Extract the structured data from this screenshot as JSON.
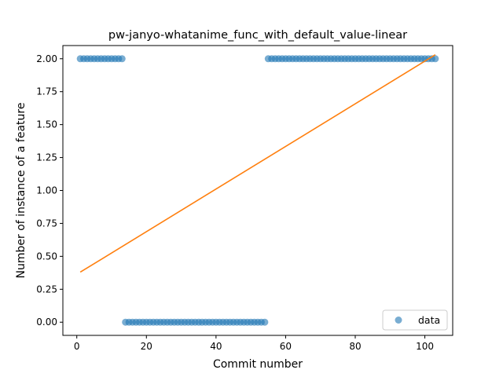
{
  "chart_data": {
    "type": "scatter",
    "title": "pw-janyo-whatanime_func_with_default_value-linear",
    "xlabel": "Commit number",
    "ylabel": "Number of instance of a feature",
    "xlim": [
      -4,
      108
    ],
    "ylim": [
      -0.1,
      2.1
    ],
    "xticks": [
      0,
      20,
      40,
      60,
      80,
      100
    ],
    "yticks": [
      0.0,
      0.25,
      0.5,
      0.75,
      1.0,
      1.25,
      1.5,
      1.75,
      2.0
    ],
    "ytick_labels": [
      "0.00",
      "0.25",
      "0.50",
      "0.75",
      "1.00",
      "1.25",
      "1.50",
      "1.75",
      "2.00"
    ],
    "grid": false,
    "legend": {
      "position": "lower-right",
      "entries": [
        "data"
      ]
    },
    "series": [
      {
        "name": "data",
        "kind": "scatter",
        "color": "#1f77b4",
        "x": [
          1,
          2,
          3,
          4,
          5,
          6,
          7,
          8,
          9,
          10,
          11,
          12,
          13,
          14,
          15,
          16,
          17,
          18,
          19,
          20,
          21,
          22,
          23,
          24,
          25,
          26,
          27,
          28,
          29,
          30,
          31,
          32,
          33,
          34,
          35,
          36,
          37,
          38,
          39,
          40,
          41,
          42,
          43,
          44,
          45,
          46,
          47,
          48,
          49,
          50,
          51,
          52,
          53,
          54,
          55,
          56,
          57,
          58,
          59,
          60,
          61,
          62,
          63,
          64,
          65,
          66,
          67,
          68,
          69,
          70,
          71,
          72,
          73,
          74,
          75,
          76,
          77,
          78,
          79,
          80,
          81,
          82,
          83,
          84,
          85,
          86,
          87,
          88,
          89,
          90,
          91,
          92,
          93,
          94,
          95,
          96,
          97,
          98,
          99,
          100,
          101,
          102,
          103
        ],
        "y": [
          2,
          2,
          2,
          2,
          2,
          2,
          2,
          2,
          2,
          2,
          2,
          2,
          2,
          0,
          0,
          0,
          0,
          0,
          0,
          0,
          0,
          0,
          0,
          0,
          0,
          0,
          0,
          0,
          0,
          0,
          0,
          0,
          0,
          0,
          0,
          0,
          0,
          0,
          0,
          0,
          0,
          0,
          0,
          0,
          0,
          0,
          0,
          0,
          0,
          0,
          0,
          0,
          0,
          0,
          2,
          2,
          2,
          2,
          2,
          2,
          2,
          2,
          2,
          2,
          2,
          2,
          2,
          2,
          2,
          2,
          2,
          2,
          2,
          2,
          2,
          2,
          2,
          2,
          2,
          2,
          2,
          2,
          2,
          2,
          2,
          2,
          2,
          2,
          2,
          2,
          2,
          2,
          2,
          2,
          2,
          2,
          2,
          2,
          2,
          2,
          2,
          2,
          2
        ]
      },
      {
        "kind": "line",
        "color": "#ff7f0e",
        "x": [
          1,
          103
        ],
        "y": [
          0.38,
          2.03
        ]
      }
    ]
  }
}
